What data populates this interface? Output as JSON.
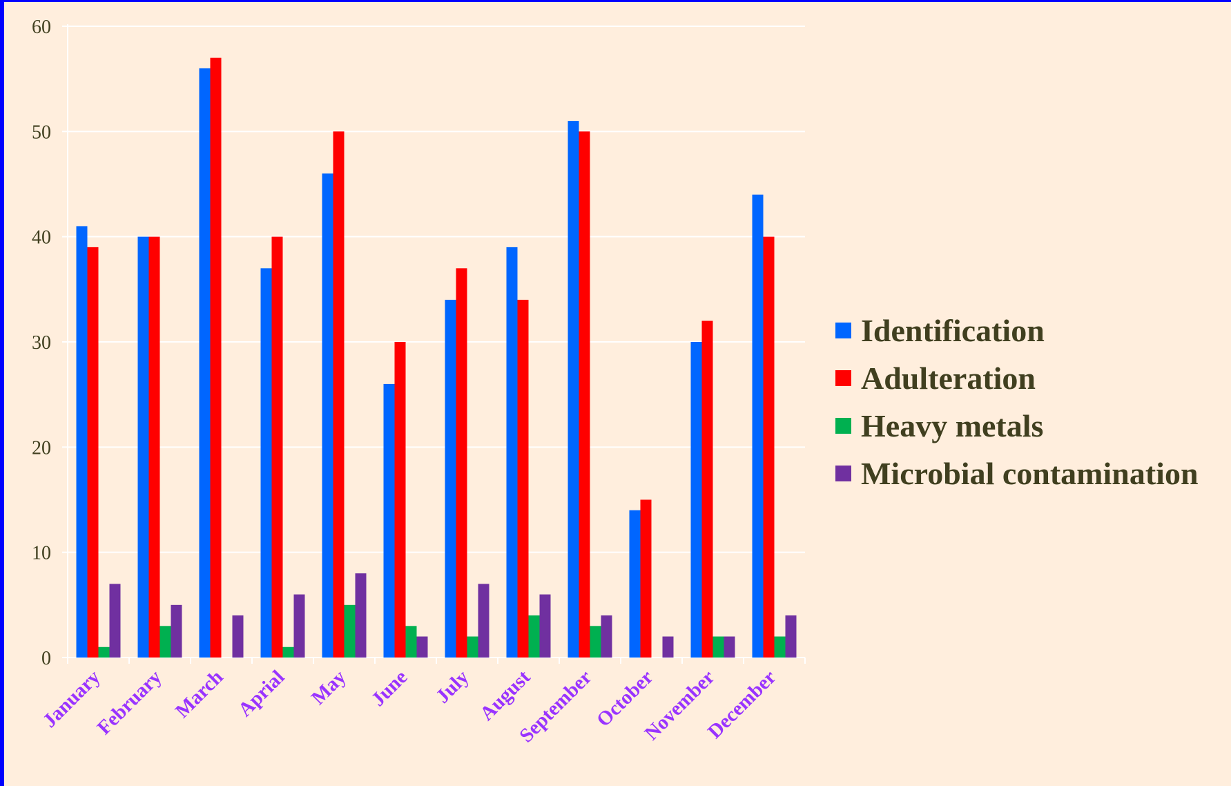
{
  "chart_data": {
    "type": "bar",
    "categories": [
      "January",
      "February",
      "March",
      "Aprial",
      "May",
      "June",
      "July",
      "August",
      "September",
      "October",
      "November",
      "December"
    ],
    "series": [
      {
        "name": "Identification",
        "color": "#0066ff",
        "values": [
          41,
          40,
          56,
          37,
          46,
          26,
          34,
          39,
          51,
          14,
          30,
          44
        ]
      },
      {
        "name": "Adulteration",
        "color": "#ff0000",
        "values": [
          39,
          40,
          57,
          40,
          50,
          30,
          37,
          34,
          50,
          15,
          32,
          40
        ]
      },
      {
        "name": "Heavy metals",
        "color": "#00b050",
        "values": [
          1,
          3,
          0,
          1,
          5,
          3,
          2,
          4,
          3,
          0,
          2,
          2
        ]
      },
      {
        "name": "Microbial contamination",
        "color": "#7030a0",
        "values": [
          7,
          5,
          4,
          6,
          8,
          2,
          7,
          6,
          4,
          2,
          2,
          4
        ]
      }
    ],
    "ylim": [
      0,
      60
    ],
    "yticks": [
      0,
      10,
      20,
      30,
      40,
      50,
      60
    ],
    "grid": true,
    "legend_position": "right",
    "title": "",
    "xlabel": "",
    "ylabel": "",
    "colors": {
      "background": "#ffeedd",
      "border": "#0000ff",
      "gridline": "#ffffff",
      "tick_label": "#403f1f",
      "category_label": "#9933ff",
      "legend_text": "#403f1f"
    }
  }
}
